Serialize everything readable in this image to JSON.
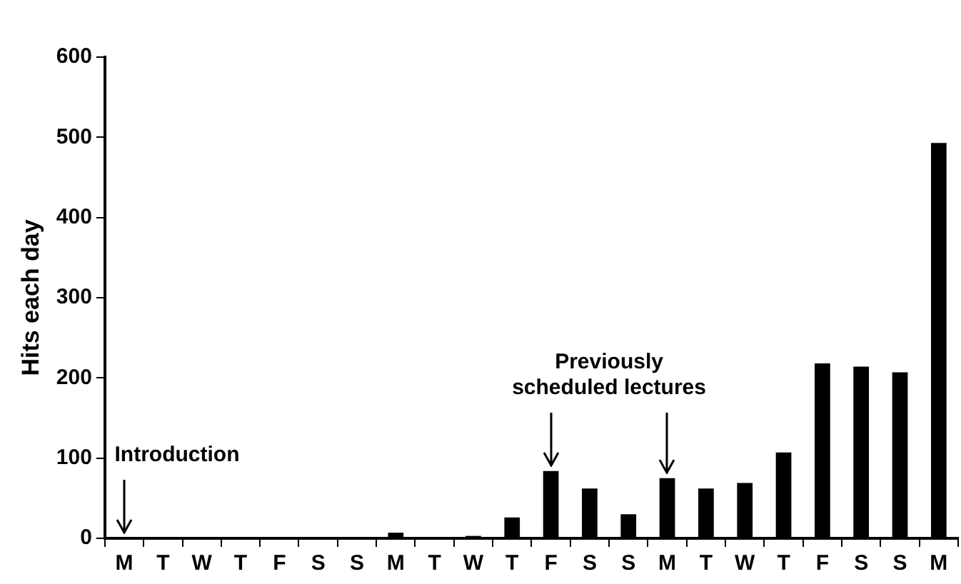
{
  "chart_data": {
    "type": "bar",
    "ylabel": "Hits each day",
    "categories": [
      "M",
      "T",
      "W",
      "T",
      "F",
      "S",
      "S",
      "M",
      "T",
      "W",
      "T",
      "F",
      "S",
      "S",
      "M",
      "T",
      "W",
      "T",
      "F",
      "S",
      "S",
      "M"
    ],
    "values": [
      0,
      0,
      0,
      0,
      0,
      0,
      0,
      7,
      0,
      3,
      26,
      84,
      62,
      30,
      75,
      62,
      69,
      107,
      218,
      214,
      207,
      493
    ],
    "color": "#000000",
    "ylim": [
      0,
      600
    ],
    "yticks": [
      0,
      100,
      200,
      300,
      400,
      500,
      600
    ],
    "grid": false,
    "legend": false,
    "annotations": [
      "Introduction",
      "Previously\nscheduled lectures"
    ]
  }
}
